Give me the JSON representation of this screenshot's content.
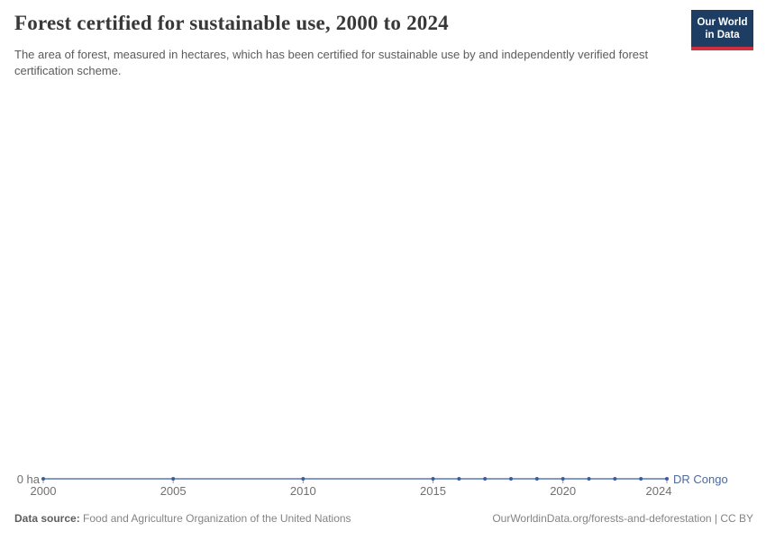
{
  "header": {
    "title": "Forest certified for sustainable use, 2000 to 2024",
    "subtitle": "The area of forest, measured in hectares, which has been certified for sustainable use by and independently verified forest certification scheme.",
    "logo": {
      "line1": "Our World",
      "line2": "in Data"
    }
  },
  "chart_data": {
    "type": "line",
    "title": "Forest certified for sustainable use, 2000 to 2024",
    "xlabel": "",
    "ylabel": "ha",
    "xlim": [
      2000,
      2024
    ],
    "x_ticks": [
      2000,
      2005,
      2010,
      2015,
      2020,
      2024
    ],
    "y_axis_label": "0 ha",
    "grid": false,
    "legend_position": "end-of-line",
    "series": [
      {
        "name": "DR Congo",
        "color": "#5878b3",
        "marker_color": "#3d5c9e",
        "x": [
          2000,
          2005,
          2010,
          2015,
          2016,
          2017,
          2018,
          2019,
          2020,
          2021,
          2022,
          2023,
          2024
        ],
        "values": [
          0,
          0,
          0,
          0,
          0,
          0,
          0,
          0,
          0,
          0,
          0,
          0,
          0
        ]
      }
    ]
  },
  "footer": {
    "datasource_label": "Data source:",
    "datasource_value": " Food and Agriculture Organization of the United Nations",
    "attribution": "OurWorldinData.org/forests-and-deforestation | CC BY"
  },
  "colors": {
    "logo_bg": "#1d3d63",
    "logo_red": "#cf303e",
    "axis_tick": "#9a9a9a",
    "axis_text": "#707070"
  }
}
